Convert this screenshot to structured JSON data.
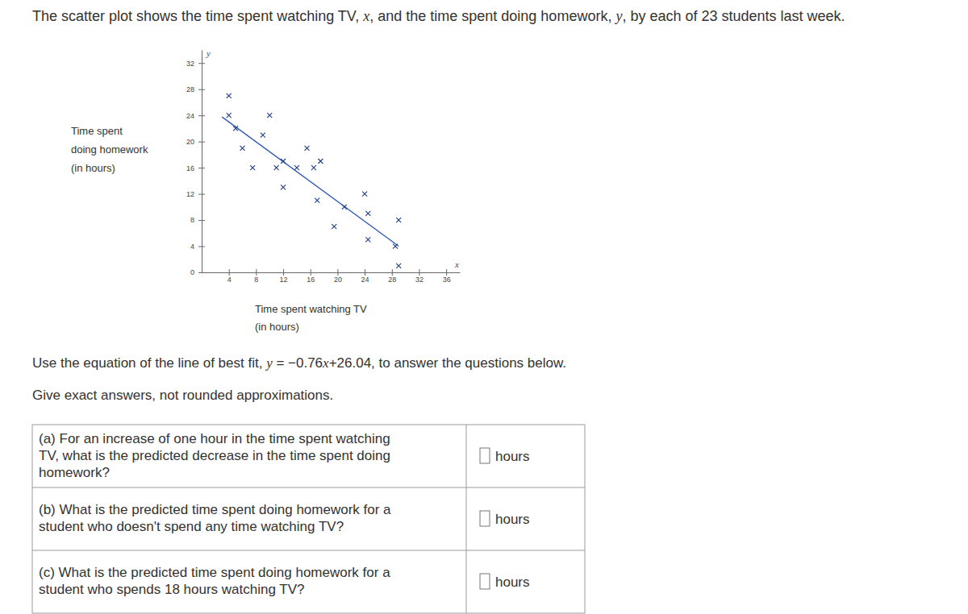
{
  "intro": [
    {
      "text": "The scatter plot shows the time spent watching TV, "
    },
    {
      "text": "x",
      "italic": true
    },
    {
      "text": ", and the time spent doing homework, "
    },
    {
      "text": "y",
      "italic": true
    },
    {
      "text": ", by each of 23 students last week."
    }
  ],
  "chart_data": {
    "type": "scatter",
    "xlabel": [
      "Time spent watching TV",
      "(in hours)"
    ],
    "ylabel": [
      "Time spent",
      "doing homework",
      "(in hours)"
    ],
    "axis_symbols": {
      "x": "x",
      "y": "y"
    },
    "x": [
      4,
      4,
      5,
      6,
      7.5,
      10,
      9,
      11,
      12,
      14,
      15.5,
      16.5,
      17.5,
      17,
      19.5,
      24,
      24.5,
      24.5,
      29,
      28.5,
      29,
      12,
      21
    ],
    "values": [
      27,
      24,
      22,
      19,
      16,
      24,
      21,
      16,
      13,
      16,
      19,
      16,
      17,
      11,
      7,
      12,
      9,
      5,
      8,
      4,
      1,
      17,
      10
    ],
    "color": "#1f3c88",
    "marker": "x",
    "fit": {
      "slope": -0.76,
      "intercept": 26.04,
      "x": [
        3,
        29
      ],
      "color": "#2b57b5"
    },
    "xlim": [
      0,
      38
    ],
    "xticks": [
      4,
      8,
      12,
      16,
      20,
      24,
      28,
      32,
      36
    ],
    "ylim": [
      0,
      34
    ],
    "yticks": [
      0,
      4,
      8,
      12,
      16,
      20,
      24,
      28,
      32
    ],
    "grid": false
  },
  "instruction": [
    {
      "text": "Use the equation of the line of best fit, "
    },
    {
      "text": "y",
      "italic": true
    },
    {
      "text": " = −0.76"
    },
    {
      "text": "x",
      "italic": true
    },
    {
      "text": "+26.04, to answer the questions below."
    }
  ],
  "note": "Give exact answers, not rounded approximations.",
  "questions": [
    {
      "lines": [
        "(a) For an increase of one hour in the time spent watching",
        "TV, what is the predicted decrease in the time spent doing",
        "homework?"
      ],
      "unit": "hours"
    },
    {
      "lines": [
        "(b) What is the predicted time spent doing homework for a",
        "student who doesn't spend any time watching TV?"
      ],
      "unit": "hours"
    },
    {
      "lines": [
        "(c) What is the predicted time spent doing homework for a",
        "student who spends 18 hours watching TV?"
      ],
      "unit": "hours"
    }
  ]
}
